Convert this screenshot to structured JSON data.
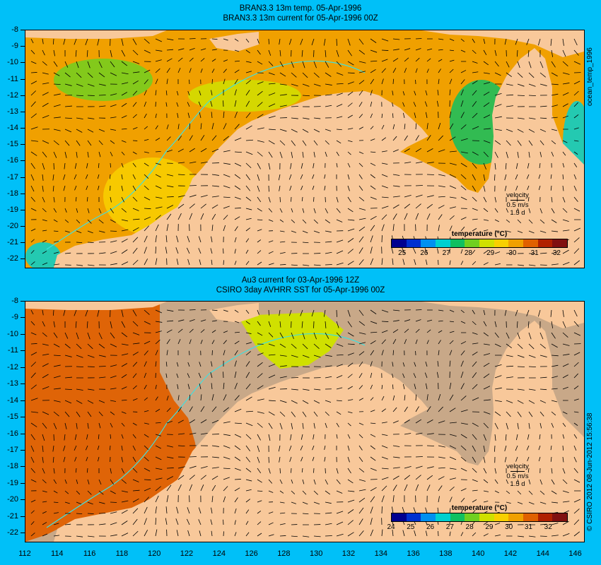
{
  "panels": [
    {
      "id": "top",
      "title_line1": "BRAN3.3 13m temp. 05-Apr-1996",
      "title_line2": "BRAN3.3 13m current for 05-Apr-1996 00Z",
      "side_label": "ocean_temp_1996",
      "velocity_label": "velocity",
      "velocity_speed": "0.5 m/s",
      "velocity_days": "1.5 d",
      "colorbar_title": "temperature (°C)",
      "colorbar_labels": [
        "25",
        "26",
        "27",
        "28",
        "29",
        "30",
        "31",
        "32"
      ],
      "colorbar_range": [
        24.5,
        32.5
      ],
      "y_ticks": [
        "-8",
        "-9",
        "-10",
        "-11",
        "-12",
        "-13",
        "-14",
        "-15",
        "-16",
        "-17",
        "-18",
        "-19",
        "-20",
        "-21",
        "-22"
      ]
    },
    {
      "id": "bottom",
      "title_line1": "Au3 current for 03-Apr-1996 12Z",
      "title_line2": "CSIRO 3day AVHRR SST for 05-Apr-1996 00Z",
      "side_label": "© CSIRO 2012  08-Jun-2012 15:56:38",
      "velocity_label": "velocity",
      "velocity_speed": "0.5 m/s",
      "velocity_days": "1.5 d",
      "colorbar_title": "temperature (°C)",
      "colorbar_labels": [
        "24",
        "25",
        "26",
        "27",
        "28",
        "29",
        "30",
        "31",
        "32"
      ],
      "colorbar_range": [
        24,
        33
      ],
      "y_ticks": [
        "-8",
        "-9",
        "-10",
        "-11",
        "-12",
        "-13",
        "-14",
        "-15",
        "-16",
        "-17",
        "-18",
        "-19",
        "-20",
        "-21",
        "-22"
      ]
    }
  ],
  "x_ticks": [
    "112",
    "114",
    "116",
    "118",
    "120",
    "122",
    "124",
    "126",
    "128",
    "130",
    "132",
    "134",
    "136",
    "138",
    "140",
    "142",
    "144",
    "146"
  ],
  "map_extent": {
    "lon": [
      112,
      146.5
    ],
    "lat": [
      -22.5,
      -8
    ]
  },
  "colors": {
    "background": "#00c0f8",
    "land": "#f8c89a",
    "no_data": "#c8a888",
    "isobath": "#40e0e0",
    "colormap": [
      "#000090",
      "#0030d0",
      "#0090f0",
      "#00d0d0",
      "#10c060",
      "#70d020",
      "#d0e000",
      "#f8d000",
      "#f0a000",
      "#e06000",
      "#b02000",
      "#801010"
    ]
  }
}
